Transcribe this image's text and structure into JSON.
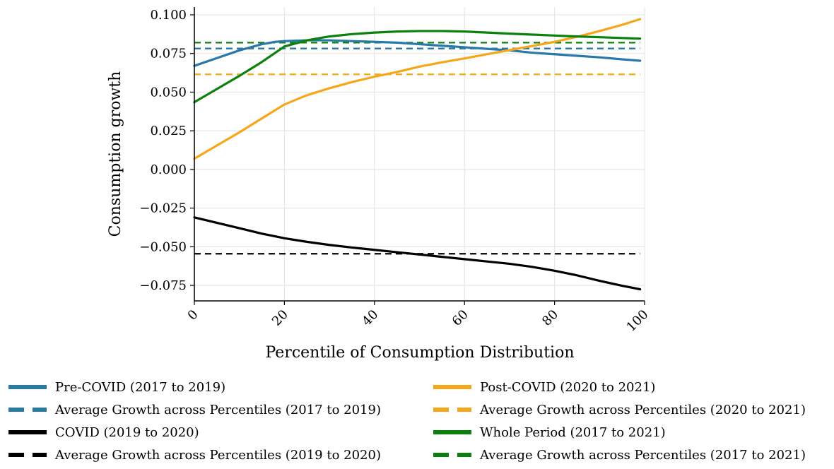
{
  "chart_data": {
    "type": "line",
    "xlabel": "Percentile of Consumption Distribution",
    "ylabel": "Consumption growth",
    "xlim": [
      0,
      100
    ],
    "ylim": [
      -0.085,
      0.105
    ],
    "xticks": [
      0,
      20,
      40,
      60,
      80,
      100
    ],
    "xtick_labels": [
      "0",
      "20",
      "40",
      "60",
      "80",
      "100"
    ],
    "yticks": [
      -0.075,
      -0.05,
      -0.025,
      0.0,
      0.025,
      0.05,
      0.075,
      0.1
    ],
    "ytick_labels": [
      "−0.075",
      "−0.050",
      "−0.025",
      "0.000",
      "0.025",
      "0.050",
      "0.075",
      "0.100"
    ],
    "grid": true,
    "legend_placement": "bottom",
    "series": [
      {
        "name": "Pre-COVID (2017 to 2019)",
        "color": "#2878a8",
        "style": "solid",
        "x": [
          0,
          5,
          10,
          15,
          18,
          20,
          25,
          30,
          35,
          40,
          45,
          50,
          55,
          60,
          65,
          70,
          75,
          80,
          85,
          90,
          95,
          99
        ],
        "y": [
          0.067,
          0.072,
          0.077,
          0.081,
          0.0825,
          0.083,
          0.0835,
          0.0835,
          0.083,
          0.0825,
          0.082,
          0.081,
          0.08,
          0.079,
          0.078,
          0.077,
          0.0755,
          0.0745,
          0.0735,
          0.0725,
          0.0712,
          0.0703
        ]
      },
      {
        "name": "Average Growth across Percentiles (2017 to 2019)",
        "color": "#2878a8",
        "style": "dashed",
        "x": [
          0,
          99
        ],
        "y": [
          0.0782,
          0.0782
        ]
      },
      {
        "name": "COVID (2019 to 2020)",
        "color": "#000000",
        "style": "solid",
        "x": [
          0,
          5,
          10,
          15,
          20,
          25,
          30,
          35,
          40,
          45,
          50,
          55,
          60,
          65,
          70,
          75,
          80,
          85,
          90,
          95,
          99
        ],
        "y": [
          -0.031,
          -0.0345,
          -0.038,
          -0.0415,
          -0.0445,
          -0.0468,
          -0.0488,
          -0.0505,
          -0.052,
          -0.0535,
          -0.055,
          -0.0565,
          -0.058,
          -0.0595,
          -0.061,
          -0.063,
          -0.0655,
          -0.0685,
          -0.072,
          -0.0752,
          -0.0775
        ]
      },
      {
        "name": "Average Growth across Percentiles (2019 to 2020)",
        "color": "#000000",
        "style": "dashed",
        "x": [
          0,
          99
        ],
        "y": [
          -0.0545,
          -0.0545
        ]
      },
      {
        "name": "Post-COVID (2020 to 2021)",
        "color": "#f6a719",
        "style": "solid",
        "x": [
          0,
          5,
          10,
          15,
          20,
          25,
          30,
          35,
          40,
          45,
          50,
          55,
          60,
          65,
          70,
          75,
          80,
          85,
          90,
          95,
          99
        ],
        "y": [
          0.007,
          0.0155,
          0.024,
          0.033,
          0.042,
          0.048,
          0.0525,
          0.0565,
          0.06,
          0.063,
          0.0665,
          0.0693,
          0.0718,
          0.0745,
          0.0772,
          0.0798,
          0.0825,
          0.0858,
          0.0895,
          0.0935,
          0.0972
        ]
      },
      {
        "name": "Average Growth across Percentiles (2020 to 2021)",
        "color": "#f6a719",
        "style": "dashed",
        "x": [
          0,
          99
        ],
        "y": [
          0.0615,
          0.0615
        ]
      },
      {
        "name": "Whole Period (2017 to 2021)",
        "color": "#0b800b",
        "style": "solid",
        "x": [
          0,
          5,
          10,
          15,
          20,
          25,
          30,
          35,
          40,
          45,
          50,
          55,
          60,
          65,
          70,
          75,
          80,
          85,
          90,
          95,
          99
        ],
        "y": [
          0.0435,
          0.052,
          0.0605,
          0.0695,
          0.0795,
          0.0835,
          0.086,
          0.0875,
          0.0885,
          0.0892,
          0.0895,
          0.0895,
          0.0892,
          0.0885,
          0.0878,
          0.0872,
          0.0866,
          0.086,
          0.0855,
          0.085,
          0.0846
        ]
      },
      {
        "name": "Average Growth across Percentiles (2017 to 2021)",
        "color": "#0b800b",
        "style": "dashed",
        "x": [
          0,
          99
        ],
        "y": [
          0.082,
          0.082
        ]
      }
    ]
  }
}
